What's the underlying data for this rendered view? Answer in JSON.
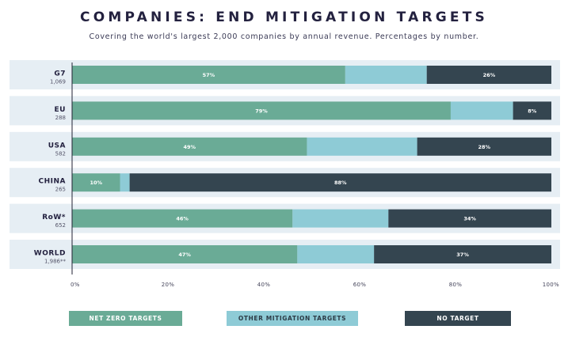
{
  "chart_data": {
    "type": "bar",
    "orientation": "horizontal",
    "stacked": true,
    "title": "COMPANIES: END MITIGATION TARGETS",
    "subtitle": "Covering the world's largest 2,000 companies by annual revenue. Percentages by number.",
    "categories": [
      {
        "name": "G7",
        "count": "1,069"
      },
      {
        "name": "EU",
        "count": "288"
      },
      {
        "name": "USA",
        "count": "582"
      },
      {
        "name": "CHINA",
        "count": "265"
      },
      {
        "name": "RoW*",
        "count": "652"
      },
      {
        "name": "WORLD",
        "count": "1,986**"
      }
    ],
    "series": [
      {
        "name": "NET ZERO TARGETS",
        "color": "#6aab96",
        "label_color": "#ffffff",
        "values": [
          57,
          79,
          49,
          10,
          46,
          47
        ],
        "labels": [
          "57%",
          "79%",
          "49%",
          "10%",
          "46%",
          "47%"
        ]
      },
      {
        "name": "OTHER MITIGATION TARGETS",
        "color": "#8ecbd6",
        "label_color": "#2c3a45",
        "values": [
          17,
          13,
          23,
          2,
          20,
          16
        ],
        "labels": [
          "",
          "",
          "",
          "",
          "",
          ""
        ]
      },
      {
        "name": "NO TARGET",
        "color": "#344550",
        "label_color": "#ffffff",
        "values": [
          26,
          8,
          28,
          88,
          34,
          37
        ],
        "labels": [
          "26%",
          "8%",
          "28%",
          "88%",
          "34%",
          "37%"
        ]
      }
    ],
    "xlim": [
      0,
      100
    ],
    "x_ticks": [
      "0%",
      "20%",
      "40%",
      "60%",
      "80%",
      "100%"
    ],
    "grid": false,
    "legend_position": "bottom",
    "row_band_color": "#e6eef4",
    "text_color": "#23213f"
  }
}
